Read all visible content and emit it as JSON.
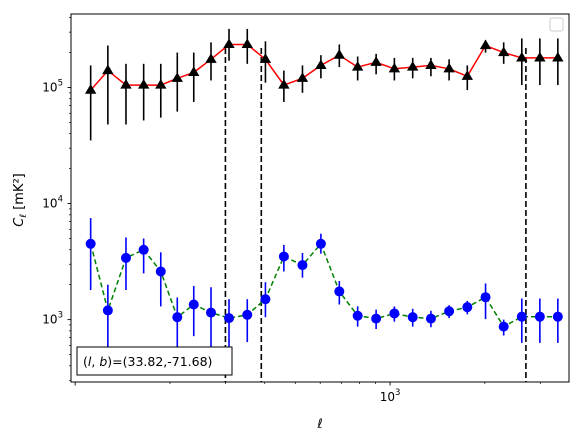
{
  "chart_data": {
    "type": "scatter",
    "xlabel": "ℓ",
    "ylabel_main": "C",
    "ylabel_sub": "ℓ",
    "ylabel_unit": "[mK²]",
    "xscale": "log",
    "yscale": "log",
    "xlim": [
      97,
      3700
    ],
    "ylim": [
      290,
      430000
    ],
    "x_ticks": [
      {
        "value": 1000,
        "label": "10",
        "exp": "3"
      }
    ],
    "y_ticks": [
      {
        "value": 1000,
        "label": "10",
        "exp": "3"
      },
      {
        "value": 10000,
        "label": "10",
        "exp": "4"
      },
      {
        "value": 100000,
        "label": "10",
        "exp": "5"
      }
    ],
    "legend": {
      "placement": "top-right",
      "entries": []
    },
    "vlines": [
      300,
      390,
      2700
    ],
    "annotation": "(l, b)=(33.82,-71.68)",
    "annotation_parts": {
      "l": "l",
      "b": "b",
      "coords": "=(33.82,-71.68)"
    },
    "series": [
      {
        "marker": "triangle",
        "marker_color": "#000000",
        "line_color": "#ff0000",
        "line_style": "solid",
        "x": [
          112,
          127,
          145,
          165,
          187,
          211,
          238,
          270,
          308,
          352,
          402,
          460,
          527,
          603,
          690,
          789,
          903,
          1032,
          1180,
          1348,
          1540,
          1759,
          2010,
          2295,
          2620,
          2990,
          3410
        ],
        "y": [
          95000,
          140000,
          105000,
          105000,
          105000,
          120000,
          135000,
          175000,
          235000,
          235000,
          175000,
          105000,
          120000,
          155000,
          190000,
          150000,
          165000,
          145000,
          150000,
          155000,
          145000,
          125000,
          230000,
          200000,
          180000,
          180000,
          180000
        ],
        "yerr_low": [
          35000,
          48000,
          48000,
          52000,
          55000,
          62000,
          75000,
          115000,
          170000,
          160000,
          110000,
          75000,
          90000,
          120000,
          150000,
          115000,
          130000,
          115000,
          120000,
          125000,
          115000,
          95000,
          200000,
          160000,
          105000,
          105000,
          105000
        ],
        "yerr_high": [
          155000,
          230000,
          160000,
          160000,
          160000,
          200000,
          200000,
          245000,
          320000,
          320000,
          250000,
          140000,
          155000,
          190000,
          235000,
          185000,
          195000,
          180000,
          180000,
          180000,
          175000,
          155000,
          255000,
          245000,
          265000,
          265000,
          265000
        ]
      },
      {
        "marker": "circle",
        "marker_color": "#0000ff",
        "line_color": "#008000",
        "line_style": "dashed",
        "x": [
          112,
          127,
          145,
          165,
          187,
          211,
          238,
          270,
          308,
          352,
          402,
          460,
          527,
          603,
          690,
          789,
          903,
          1032,
          1180,
          1348,
          1540,
          1759,
          2010,
          2295,
          2620,
          2990,
          3410
        ],
        "y": [
          4500,
          1200,
          3400,
          4000,
          2600,
          1050,
          1350,
          1150,
          1030,
          1100,
          1500,
          3500,
          2950,
          4500,
          1750,
          1080,
          1020,
          1130,
          1050,
          1020,
          1180,
          1280,
          1560,
          870,
          1060,
          1060,
          1060
        ],
        "yerr_low": [
          1800,
          560,
          1800,
          2500,
          1300,
          580,
          720,
          560,
          580,
          640,
          1050,
          2600,
          2300,
          3700,
          1350,
          870,
          830,
          960,
          870,
          860,
          1030,
          1110,
          1010,
          730,
          630,
          630,
          630
        ],
        "yerr_high": [
          7500,
          2000,
          5100,
          5000,
          3800,
          1550,
          1950,
          1900,
          1500,
          1500,
          2100,
          4400,
          3750,
          5500,
          2150,
          1300,
          1220,
          1300,
          1240,
          1190,
          1330,
          1450,
          2050,
          1000,
          1520,
          1520,
          1520
        ]
      }
    ]
  }
}
